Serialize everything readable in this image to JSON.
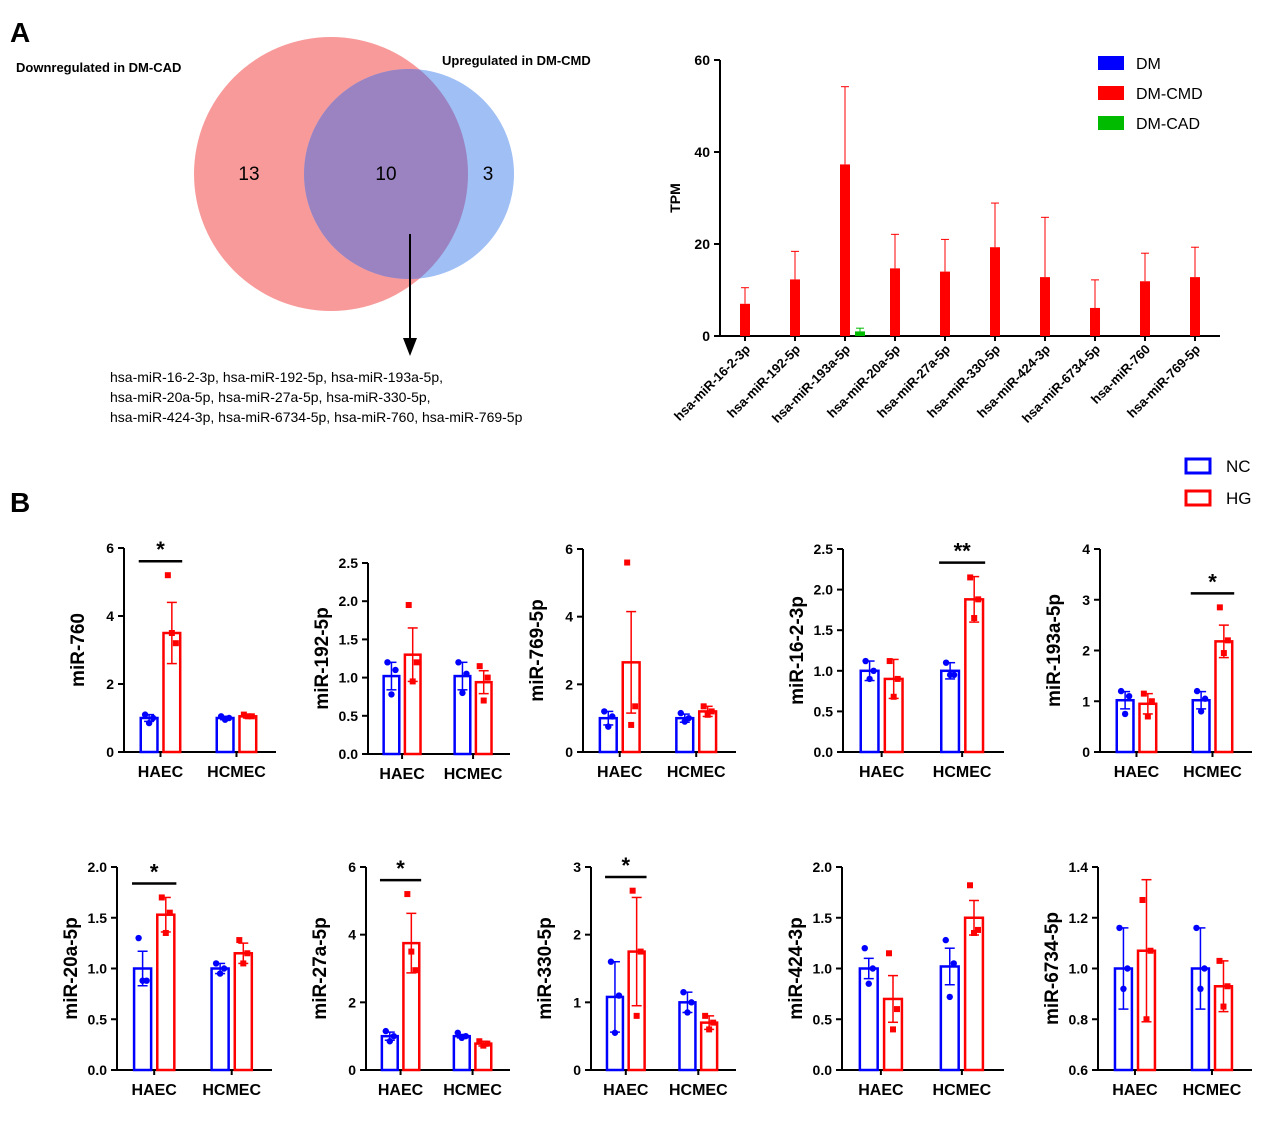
{
  "panel_labels": {
    "a": "A",
    "b": "B"
  },
  "venn": {
    "left_label": "Downregulated  in DM-CAD",
    "right_label": "Upregulated  in DM-CMD",
    "left_only": "13",
    "overlap": "10",
    "right_only": "3",
    "left_color": "#f89a9a",
    "right_color": "#9fbff5",
    "overlap_color": "#9b82c0",
    "mirna_lines": [
      "hsa-miR-16-2-3p, hsa-miR-192-5p, hsa-miR-193a-5p,",
      "hsa-miR-20a-5p, hsa-miR-27a-5p, hsa-miR-330-5p,",
      "hsa-miR-424-3p, hsa-miR-6734-5p, hsa-miR-760, hsa-miR-769-5p"
    ]
  },
  "chart_data": [
    {
      "type": "bar",
      "panel": "A",
      "ylabel": "TPM",
      "ylim": [
        0,
        60
      ],
      "yticks": [
        0,
        20,
        40,
        60
      ],
      "categories": [
        "hsa-miR-16-2-3p",
        "hsa-miR-192-5p",
        "hsa-miR-193a-5p",
        "hsa-miR-20a-5p",
        "hsa-miR-27a-5p",
        "hsa-miR-330-5p",
        "hsa-miR-424-3p",
        "hsa-miR-6734-5p",
        "hsa-miR-760",
        "hsa-miR-769-5p"
      ],
      "legend_position": "top-right",
      "series": [
        {
          "name": "DM",
          "color": "#0000ff",
          "values": [
            0,
            0,
            0,
            0,
            0,
            0,
            0,
            0,
            0,
            0
          ],
          "errors": [
            0,
            0,
            0,
            0,
            0,
            0,
            0,
            0,
            0,
            0
          ]
        },
        {
          "name": "DM-CMD",
          "color": "#ff0000",
          "values": [
            7,
            12.3,
            37.3,
            14.7,
            14,
            19.3,
            12.8,
            6.1,
            11.9,
            12.8
          ],
          "errors": [
            3.5,
            6.1,
            16.9,
            7.4,
            7,
            9.6,
            13,
            6.1,
            6.1,
            6.5
          ]
        },
        {
          "name": "DM-CAD",
          "color": "#00bb00",
          "values": [
            0,
            0,
            1,
            0,
            0,
            0,
            0,
            0,
            0,
            0
          ],
          "errors": [
            0,
            0,
            0.7,
            0,
            0,
            0,
            0,
            0,
            0,
            0
          ]
        }
      ]
    },
    {
      "type": "legend",
      "panel": "B",
      "entries": [
        {
          "name": "NC",
          "color": "#0000ff"
        },
        {
          "name": "HG",
          "color": "#ff0000"
        }
      ]
    },
    {
      "type": "bar",
      "panel": "B",
      "ylabel": "miR-760",
      "ylim": [
        0,
        6
      ],
      "yticks": [
        0,
        2,
        4,
        6
      ],
      "categories": [
        "HAEC",
        "HCMEC"
      ],
      "series": [
        {
          "name": "NC",
          "values": [
            1.0,
            1.0
          ],
          "errors": [
            0.1,
            0.05
          ],
          "points": [
            [
              1.1,
              0.85,
              1.0
            ],
            [
              1.05,
              0.95,
              1.0
            ]
          ]
        },
        {
          "name": "HG",
          "values": [
            3.5,
            1.05
          ],
          "errors": [
            0.9,
            0.05
          ],
          "points": [
            [
              5.2,
              3.5,
              3.2
            ],
            [
              1.1,
              1.05,
              1.05
            ]
          ]
        }
      ],
      "significance": [
        {
          "category": "HAEC",
          "label": "*"
        }
      ]
    },
    {
      "type": "bar",
      "panel": "B",
      "ylabel": "miR-192-5p",
      "ylim": [
        0,
        2.5
      ],
      "yticks": [
        0.0,
        0.5,
        1.0,
        1.5,
        2.0,
        2.5
      ],
      "categories": [
        "HAEC",
        "HCMEC"
      ],
      "series": [
        {
          "name": "NC",
          "values": [
            1.02,
            1.02
          ],
          "errors": [
            0.18,
            0.18
          ],
          "points": [
            [
              1.2,
              0.78,
              1.1
            ],
            [
              1.2,
              0.8,
              1.05
            ]
          ]
        },
        {
          "name": "HG",
          "values": [
            1.3,
            0.94
          ],
          "errors": [
            0.35,
            0.15
          ],
          "points": [
            [
              1.95,
              0.95,
              1.2
            ],
            [
              1.15,
              0.7,
              1.0
            ]
          ]
        }
      ]
    },
    {
      "type": "bar",
      "panel": "B",
      "ylabel": "miR-769-5p",
      "ylim": [
        0,
        6
      ],
      "yticks": [
        0,
        2,
        4,
        6
      ],
      "categories": [
        "HAEC",
        "HCMEC"
      ],
      "series": [
        {
          "name": "NC",
          "values": [
            1.0,
            1.0
          ],
          "errors": [
            0.2,
            0.12
          ],
          "points": [
            [
              1.2,
              0.75,
              1.05
            ],
            [
              1.15,
              0.9,
              1.0
            ]
          ]
        },
        {
          "name": "HG",
          "values": [
            2.65,
            1.2
          ],
          "errors": [
            1.5,
            0.15
          ],
          "points": [
            [
              5.6,
              0.8,
              1.35
            ],
            [
              1.35,
              1.1,
              1.2
            ]
          ]
        }
      ]
    },
    {
      "type": "bar",
      "panel": "B",
      "ylabel": "miR-16-2-3p",
      "ylim": [
        0,
        2.5
      ],
      "yticks": [
        0.0,
        0.5,
        1.0,
        1.5,
        2.0,
        2.5
      ],
      "categories": [
        "HAEC",
        "HCMEC"
      ],
      "series": [
        {
          "name": "NC",
          "values": [
            1.0,
            1.0
          ],
          "errors": [
            0.12,
            0.1
          ],
          "points": [
            [
              1.12,
              0.9,
              1.0
            ],
            [
              1.1,
              0.95,
              0.95
            ]
          ]
        },
        {
          "name": "HG",
          "values": [
            0.9,
            1.88
          ],
          "errors": [
            0.24,
            0.28
          ],
          "points": [
            [
              1.12,
              0.68,
              0.9
            ],
            [
              2.15,
              1.65,
              1.88
            ]
          ]
        }
      ],
      "significance": [
        {
          "category": "HCMEC",
          "label": "**"
        }
      ]
    },
    {
      "type": "bar",
      "panel": "B",
      "ylabel": "miR-193a-5p",
      "ylim": [
        0,
        4
      ],
      "yticks": [
        0,
        1,
        2,
        3,
        4
      ],
      "categories": [
        "HAEC",
        "HCMEC"
      ],
      "series": [
        {
          "name": "NC",
          "values": [
            1.02,
            1.02
          ],
          "errors": [
            0.17,
            0.17
          ],
          "points": [
            [
              1.2,
              0.75,
              1.1
            ],
            [
              1.2,
              0.8,
              1.05
            ]
          ]
        },
        {
          "name": "HG",
          "values": [
            0.95,
            2.18
          ],
          "errors": [
            0.2,
            0.32
          ],
          "points": [
            [
              1.15,
              0.7,
              1.0
            ],
            [
              2.85,
              1.95,
              2.2
            ]
          ]
        }
      ],
      "significance": [
        {
          "category": "HCMEC",
          "label": "*"
        }
      ]
    },
    {
      "type": "bar",
      "panel": "B",
      "ylabel": "miR-20a-5p",
      "ylim": [
        0,
        2
      ],
      "yticks": [
        0.0,
        0.5,
        1.0,
        1.5,
        2.0
      ],
      "categories": [
        "HAEC",
        "HCMEC"
      ],
      "series": [
        {
          "name": "NC",
          "values": [
            1.0,
            1.0
          ],
          "errors": [
            0.17,
            0.05
          ],
          "points": [
            [
              1.3,
              0.88,
              0.88
            ],
            [
              1.05,
              0.95,
              1.0
            ]
          ]
        },
        {
          "name": "HG",
          "values": [
            1.53,
            1.15
          ],
          "errors": [
            0.17,
            0.1
          ],
          "points": [
            [
              1.7,
              1.35,
              1.55
            ],
            [
              1.28,
              1.05,
              1.15
            ]
          ]
        }
      ],
      "significance": [
        {
          "category": "HAEC",
          "label": "*"
        }
      ]
    },
    {
      "type": "bar",
      "panel": "B",
      "ylabel": "miR-27a-5p",
      "ylim": [
        0,
        6
      ],
      "yticks": [
        0,
        2,
        4,
        6
      ],
      "categories": [
        "HAEC",
        "HCMEC"
      ],
      "series": [
        {
          "name": "NC",
          "values": [
            1.0,
            1.0
          ],
          "errors": [
            0.12,
            0.05
          ],
          "points": [
            [
              1.15,
              0.85,
              1.0
            ],
            [
              1.1,
              0.95,
              1.0
            ]
          ]
        },
        {
          "name": "HG",
          "values": [
            3.75,
            0.78
          ],
          "errors": [
            0.88,
            0.07
          ],
          "points": [
            [
              5.2,
              3.5,
              2.95
            ],
            [
              0.85,
              0.72,
              0.78
            ]
          ]
        }
      ],
      "significance": [
        {
          "category": "HAEC",
          "label": "*"
        }
      ]
    },
    {
      "type": "bar",
      "panel": "B",
      "ylabel": "miR-330-5p",
      "ylim": [
        0,
        3
      ],
      "yticks": [
        0,
        1,
        2,
        3
      ],
      "categories": [
        "HAEC",
        "HCMEC"
      ],
      "series": [
        {
          "name": "NC",
          "values": [
            1.08,
            1.0
          ],
          "errors": [
            0.52,
            0.15
          ],
          "points": [
            [
              1.6,
              0.55,
              1.1
            ],
            [
              1.15,
              0.85,
              1.0
            ]
          ]
        },
        {
          "name": "HG",
          "values": [
            1.75,
            0.7
          ],
          "errors": [
            0.8,
            0.1
          ],
          "points": [
            [
              2.65,
              0.8,
              1.75
            ],
            [
              0.8,
              0.6,
              0.7
            ]
          ]
        }
      ],
      "significance": [
        {
          "category": "HAEC",
          "label": "*"
        }
      ]
    },
    {
      "type": "bar",
      "panel": "B",
      "ylabel": "miR-424-3p",
      "ylim": [
        0,
        2
      ],
      "yticks": [
        0.0,
        0.5,
        1.0,
        1.5,
        2.0
      ],
      "categories": [
        "HAEC",
        "HCMEC"
      ],
      "series": [
        {
          "name": "NC",
          "values": [
            1.0,
            1.02
          ],
          "errors": [
            0.1,
            0.18
          ],
          "points": [
            [
              1.2,
              0.85,
              1.0
            ],
            [
              1.28,
              0.72,
              1.05
            ]
          ]
        },
        {
          "name": "HG",
          "values": [
            0.7,
            1.5
          ],
          "errors": [
            0.23,
            0.17
          ],
          "points": [
            [
              1.15,
              0.4,
              0.6
            ],
            [
              1.82,
              1.35,
              1.38
            ]
          ]
        }
      ]
    },
    {
      "type": "bar",
      "panel": "B",
      "ylabel": "miR-6734-5p",
      "ylim": [
        0.6,
        1.4
      ],
      "yticks": [
        0.6,
        0.8,
        1.0,
        1.2,
        1.4
      ],
      "categories": [
        "HAEC",
        "HCMEC"
      ],
      "series": [
        {
          "name": "NC",
          "values": [
            1.0,
            1.0
          ],
          "errors": [
            0.16,
            0.16
          ],
          "points": [
            [
              1.16,
              0.92,
              1.0
            ],
            [
              1.16,
              0.92,
              1.0
            ]
          ]
        },
        {
          "name": "HG",
          "values": [
            1.07,
            0.93
          ],
          "errors": [
            0.28,
            0.1
          ],
          "points": [
            [
              1.27,
              0.8,
              1.07
            ],
            [
              1.03,
              0.85,
              0.93
            ]
          ]
        }
      ]
    }
  ]
}
